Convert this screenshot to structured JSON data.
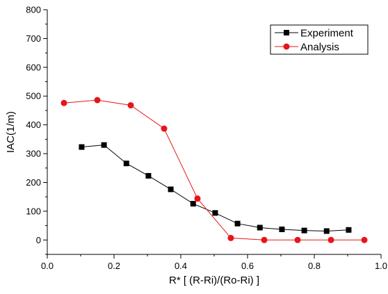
{
  "chart_data": {
    "type": "line",
    "title": "",
    "xlabel": "R* [ (R-Ri)/(Ro-Ri) ]",
    "ylabel": "IAC(1/m)",
    "xlim": [
      0.0,
      1.0
    ],
    "ylim": [
      -50,
      800
    ],
    "x_ticks": [
      "0.0",
      "0.2",
      "0.4",
      "0.6",
      "0.8",
      "1.0"
    ],
    "y_ticks": [
      "0",
      "100",
      "200",
      "300",
      "400",
      "500",
      "600",
      "700",
      "800"
    ],
    "grid": false,
    "legend_position": "top-right",
    "series": [
      {
        "name": "Experiment",
        "marker": "square",
        "color": "#000000",
        "x": [
          0.103,
          0.17,
          0.237,
          0.303,
          0.37,
          0.437,
          0.503,
          0.57,
          0.637,
          0.703,
          0.77,
          0.837,
          0.903
        ],
        "y": [
          323,
          330,
          266,
          223,
          176,
          126,
          94,
          57,
          43,
          37,
          33,
          31,
          35
        ]
      },
      {
        "name": "Analysis",
        "marker": "circle",
        "color": "#e8141b",
        "x": [
          0.05,
          0.15,
          0.25,
          0.35,
          0.45,
          0.55,
          0.65,
          0.75,
          0.85,
          0.95
        ],
        "y": [
          476,
          486,
          468,
          387,
          144,
          7,
          0,
          0,
          0,
          0
        ]
      }
    ]
  }
}
